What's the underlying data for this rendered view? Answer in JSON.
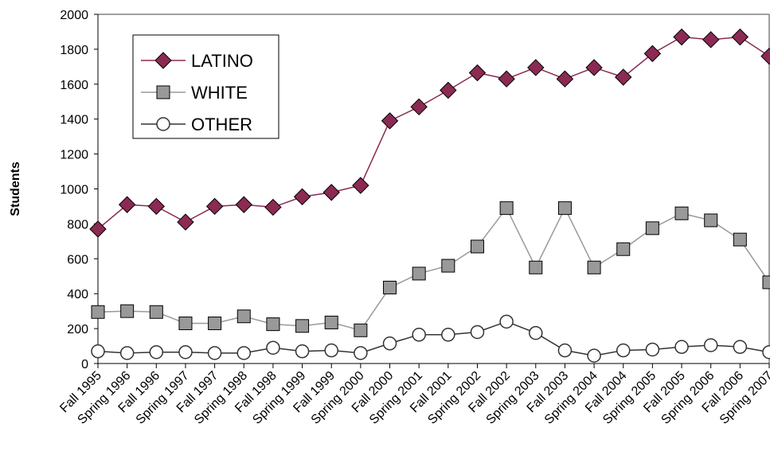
{
  "chart_data": {
    "type": "line",
    "title": "",
    "xlabel": "",
    "ylabel": "Students",
    "ylim": [
      0,
      2000
    ],
    "yticks": [
      0,
      200,
      400,
      600,
      800,
      1000,
      1200,
      1400,
      1600,
      1800,
      2000
    ],
    "grid": false,
    "legend_position": "top-left",
    "categories": [
      "Fall 1995",
      "Spring 1996",
      "Fall 1996",
      "Spring 1997",
      "Fall 1997",
      "Spring 1998",
      "Fall 1998",
      "Spring 1999",
      "Fall 1999",
      "Spring 2000",
      "Fall 2000",
      "Spring 2001",
      "Fall 2001",
      "Spring 2002",
      "Fall 2002",
      "Spring 2003",
      "Fall 2003",
      "Spring 2004",
      "Fall 2004",
      "Spring 2005",
      "Fall 2005",
      "Spring 2006",
      "Fall 2006",
      "Spring 2007"
    ],
    "series": [
      {
        "name": "LATINO",
        "color": "#8b2a52",
        "marker": "diamond",
        "values": [
          770,
          910,
          900,
          810,
          900,
          910,
          895,
          955,
          980,
          1020,
          1390,
          1470,
          1565,
          1665,
          1630,
          1695,
          1630,
          1695,
          1640,
          1775,
          1870,
          1855,
          1870,
          1760
        ]
      },
      {
        "name": "WHITE",
        "color": "#999999",
        "marker": "square",
        "values": [
          295,
          300,
          295,
          230,
          230,
          270,
          225,
          215,
          235,
          190,
          435,
          515,
          560,
          670,
          890,
          550,
          890,
          550,
          655,
          775,
          860,
          820,
          710,
          465
        ]
      },
      {
        "name": "OTHER",
        "color": "#333333",
        "marker": "circle",
        "values": [
          70,
          60,
          65,
          65,
          60,
          60,
          90,
          70,
          75,
          60,
          115,
          165,
          165,
          180,
          240,
          175,
          75,
          45,
          75,
          80,
          95,
          105,
          95,
          65
        ]
      }
    ]
  }
}
